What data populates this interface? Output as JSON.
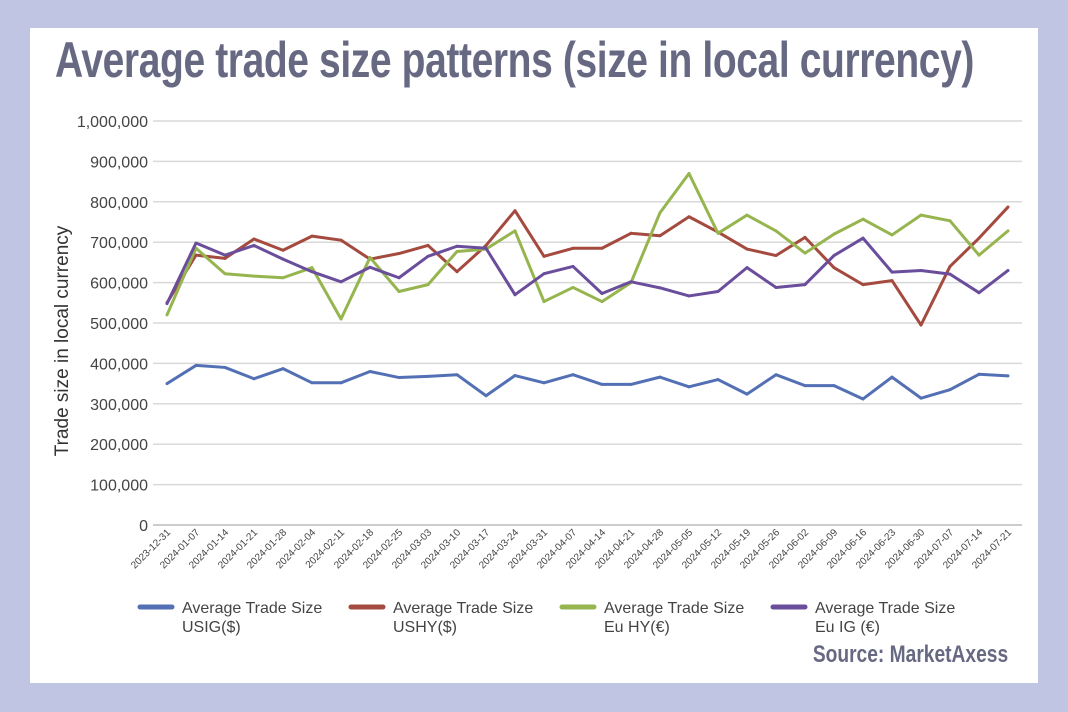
{
  "chart_data": {
    "type": "line",
    "title": "Average trade size patterns (size in local currency)",
    "ylabel": "Trade size in local currency",
    "xlabel": "",
    "ylim": [
      0,
      1000000
    ],
    "yticks": [
      "0",
      "100,000",
      "200,000",
      "300,000",
      "400,000",
      "500,000",
      "600,000",
      "700,000",
      "800,000",
      "900,000",
      "1,000,000"
    ],
    "grid": true,
    "legend_position": "bottom",
    "x": [
      "2023-12-31",
      "2024-01-07",
      "2024-01-14",
      "2024-01-21",
      "2024-01-28",
      "2024-02-04",
      "2024-02-11",
      "2024-02-18",
      "2024-02-25",
      "2024-03-03",
      "2024-03-10",
      "2024-03-17",
      "2024-03-24",
      "2024-03-31",
      "2024-04-07",
      "2024-04-14",
      "2024-04-21",
      "2024-04-28",
      "2024-05-05",
      "2024-05-12",
      "2024-05-19",
      "2024-05-26",
      "2024-06-02",
      "2024-06-09",
      "2024-06-16",
      "2024-06-23",
      "2024-06-30",
      "2024-07-07",
      "2024-07-14",
      "2024-07-21"
    ],
    "series": [
      {
        "name": "Average Trade Size USIG($)",
        "name_lines": [
          "Average Trade Size",
          "USIG($)"
        ],
        "color": "#5470b5",
        "values": [
          350000,
          395000,
          390000,
          362000,
          387000,
          352000,
          352000,
          380000,
          365000,
          368000,
          372000,
          320000,
          370000,
          352000,
          372000,
          348000,
          348000,
          366000,
          342000,
          360000,
          324000,
          372000,
          345000,
          345000,
          312000,
          366000,
          314000,
          335000,
          373000,
          369000
        ]
      },
      {
        "name": "Average Trade Size USHY($)",
        "name_lines": [
          "Average Trade Size",
          "USHY($)"
        ],
        "color": "#a44a3f",
        "values": [
          550000,
          668000,
          660000,
          708000,
          680000,
          715000,
          705000,
          658000,
          672000,
          692000,
          627000,
          692000,
          778000,
          665000,
          685000,
          685000,
          722000,
          716000,
          763000,
          725000,
          683000,
          667000,
          712000,
          637000,
          595000,
          605000,
          495000,
          640000,
          710000,
          787000
        ]
      },
      {
        "name": "Average Trade Size Eu HY(€)",
        "name_lines": [
          "Average Trade Size",
          "Eu HY(€)"
        ],
        "color": "#96b54f",
        "values": [
          520000,
          685000,
          622000,
          616000,
          612000,
          637000,
          510000,
          662000,
          578000,
          595000,
          677000,
          683000,
          728000,
          553000,
          588000,
          553000,
          600000,
          773000,
          870000,
          722000,
          767000,
          728000,
          673000,
          720000,
          757000,
          718000,
          767000,
          753000,
          668000,
          728000
        ]
      },
      {
        "name": "Average Trade Size Eu IG (€)",
        "name_lines": [
          "Average Trade Size",
          "Eu IG (€)"
        ],
        "color": "#6a4e9b",
        "values": [
          548000,
          698000,
          668000,
          692000,
          658000,
          627000,
          602000,
          638000,
          612000,
          665000,
          690000,
          685000,
          570000,
          622000,
          640000,
          573000,
          602000,
          587000,
          567000,
          578000,
          637000,
          588000,
          595000,
          667000,
          710000,
          626000,
          630000,
          621000,
          575000,
          630000
        ]
      }
    ],
    "source": "Source: MarketAxess"
  }
}
